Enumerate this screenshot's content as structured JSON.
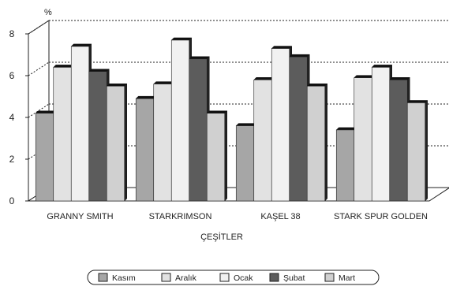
{
  "chart_data": {
    "type": "bar",
    "style": "3d-clustered",
    "categories": [
      "GRANNY SMITH",
      "STARKRIMSON",
      "KAŞEL 38",
      "STARK SPUR GOLDEN"
    ],
    "series": [
      {
        "name": "Kasım",
        "color": "#a6a6a6",
        "values": [
          4.2,
          4.9,
          3.6,
          3.4
        ]
      },
      {
        "name": "Aralık",
        "color": "#e2e2e2",
        "values": [
          6.4,
          5.6,
          5.8,
          5.9
        ]
      },
      {
        "name": "Ocak",
        "color": "#f1f1f1",
        "values": [
          7.4,
          7.7,
          7.3,
          6.4
        ]
      },
      {
        "name": "Şubat",
        "color": "#5c5c5c",
        "values": [
          6.2,
          6.8,
          6.9,
          5.8
        ]
      },
      {
        "name": "Mart",
        "color": "#d0d0d0",
        "values": [
          5.5,
          4.2,
          5.5,
          4.7
        ]
      }
    ],
    "ylabel": "%",
    "xlabel": "ÇEŞİTLER",
    "ylim": [
      0,
      8
    ],
    "yticks": [
      0,
      2,
      4,
      6,
      8
    ],
    "grid": true,
    "legend_position": "bottom"
  }
}
